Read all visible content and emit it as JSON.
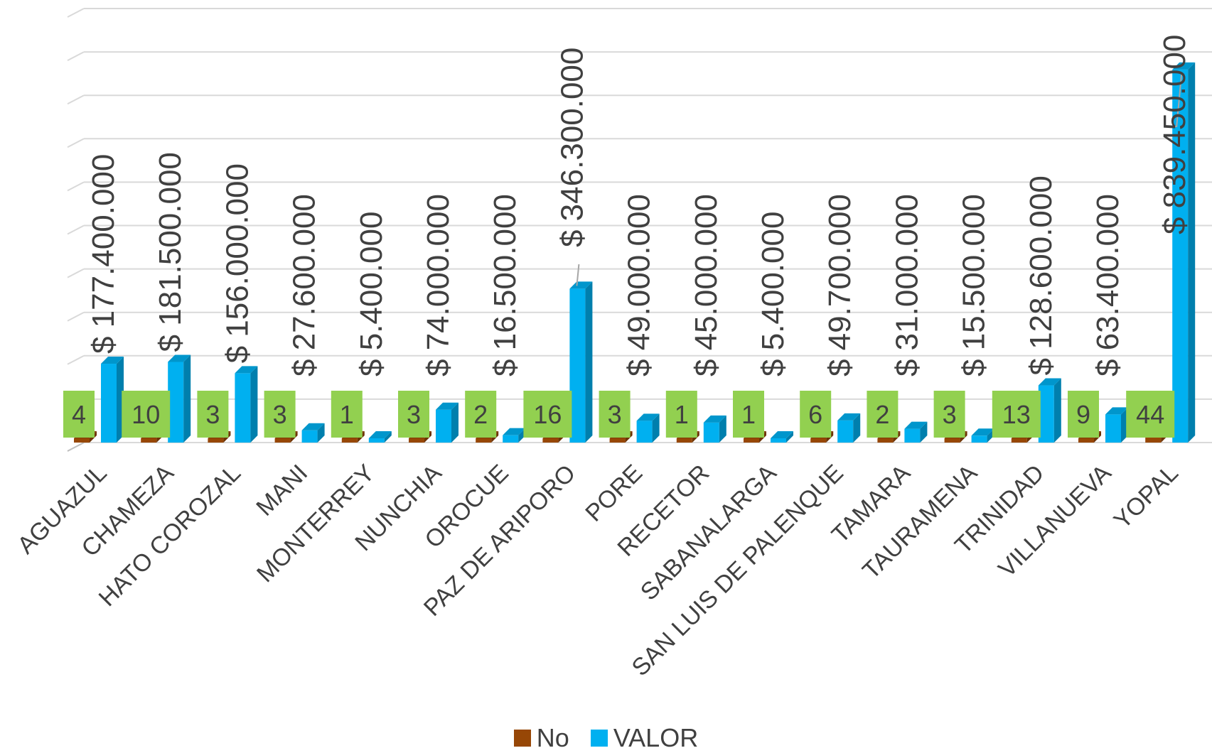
{
  "chart_data": {
    "type": "bar",
    "title": "",
    "xlabel": "",
    "ylabel": "",
    "grid": true,
    "legend_position": "bottom",
    "categories": [
      "AGUAZUL",
      "CHAMEZA",
      "HATO COROZAL",
      "MANI",
      "MONTERREY",
      "NUNCHIA",
      "OROCUE",
      "PAZ DE ARIPORO",
      "PORE",
      "RECETOR",
      "SABANALARGA",
      "SAN LUIS DE PALENQUE",
      "TAMARA",
      "TAURAMENA",
      "TRINIDAD",
      "VILLANUEVA",
      "YOPAL"
    ],
    "series": [
      {
        "name": "No",
        "color": "#974706",
        "values": [
          4,
          10,
          3,
          3,
          1,
          3,
          2,
          16,
          3,
          1,
          1,
          6,
          2,
          3,
          13,
          9,
          44
        ],
        "labels": [
          "4",
          "10",
          "3",
          "3",
          "1",
          "3",
          "2",
          "16",
          "3",
          "1",
          "1",
          "6",
          "2",
          "3",
          "13",
          "9",
          "44"
        ],
        "label_bg": "#92D050"
      },
      {
        "name": "VALOR",
        "color": "#00B0F0",
        "values": [
          177400000,
          181500000,
          156000000,
          27600000,
          5400000,
          74000000,
          16500000,
          346300000,
          49000000,
          45000000,
          5400000,
          49700000,
          31000000,
          15500000,
          128600000,
          63400000,
          839450000
        ],
        "labels": [
          "$ 177.400.000",
          "$ 181.500.000",
          "$ 156.000.000",
          "$ 27.600.000",
          "$ 5.400.000",
          "$ 74.000.000",
          "$ 16.500.000",
          "$ 346.300.000",
          "$ 49.000.000",
          "$ 45.000.000",
          "$ 5.400.000",
          "$ 49.700.000",
          "$ 31.000.000",
          "$ 15.500.000",
          "$ 128.600.000",
          "$ 63.400.000",
          "$ 839.450.000"
        ]
      }
    ],
    "ylim": [
      0,
      900000000
    ],
    "gridlines": 10
  },
  "legend": {
    "items": [
      {
        "label": "No",
        "color": "#974706"
      },
      {
        "label": "VALOR",
        "color": "#00B0F0"
      }
    ]
  }
}
